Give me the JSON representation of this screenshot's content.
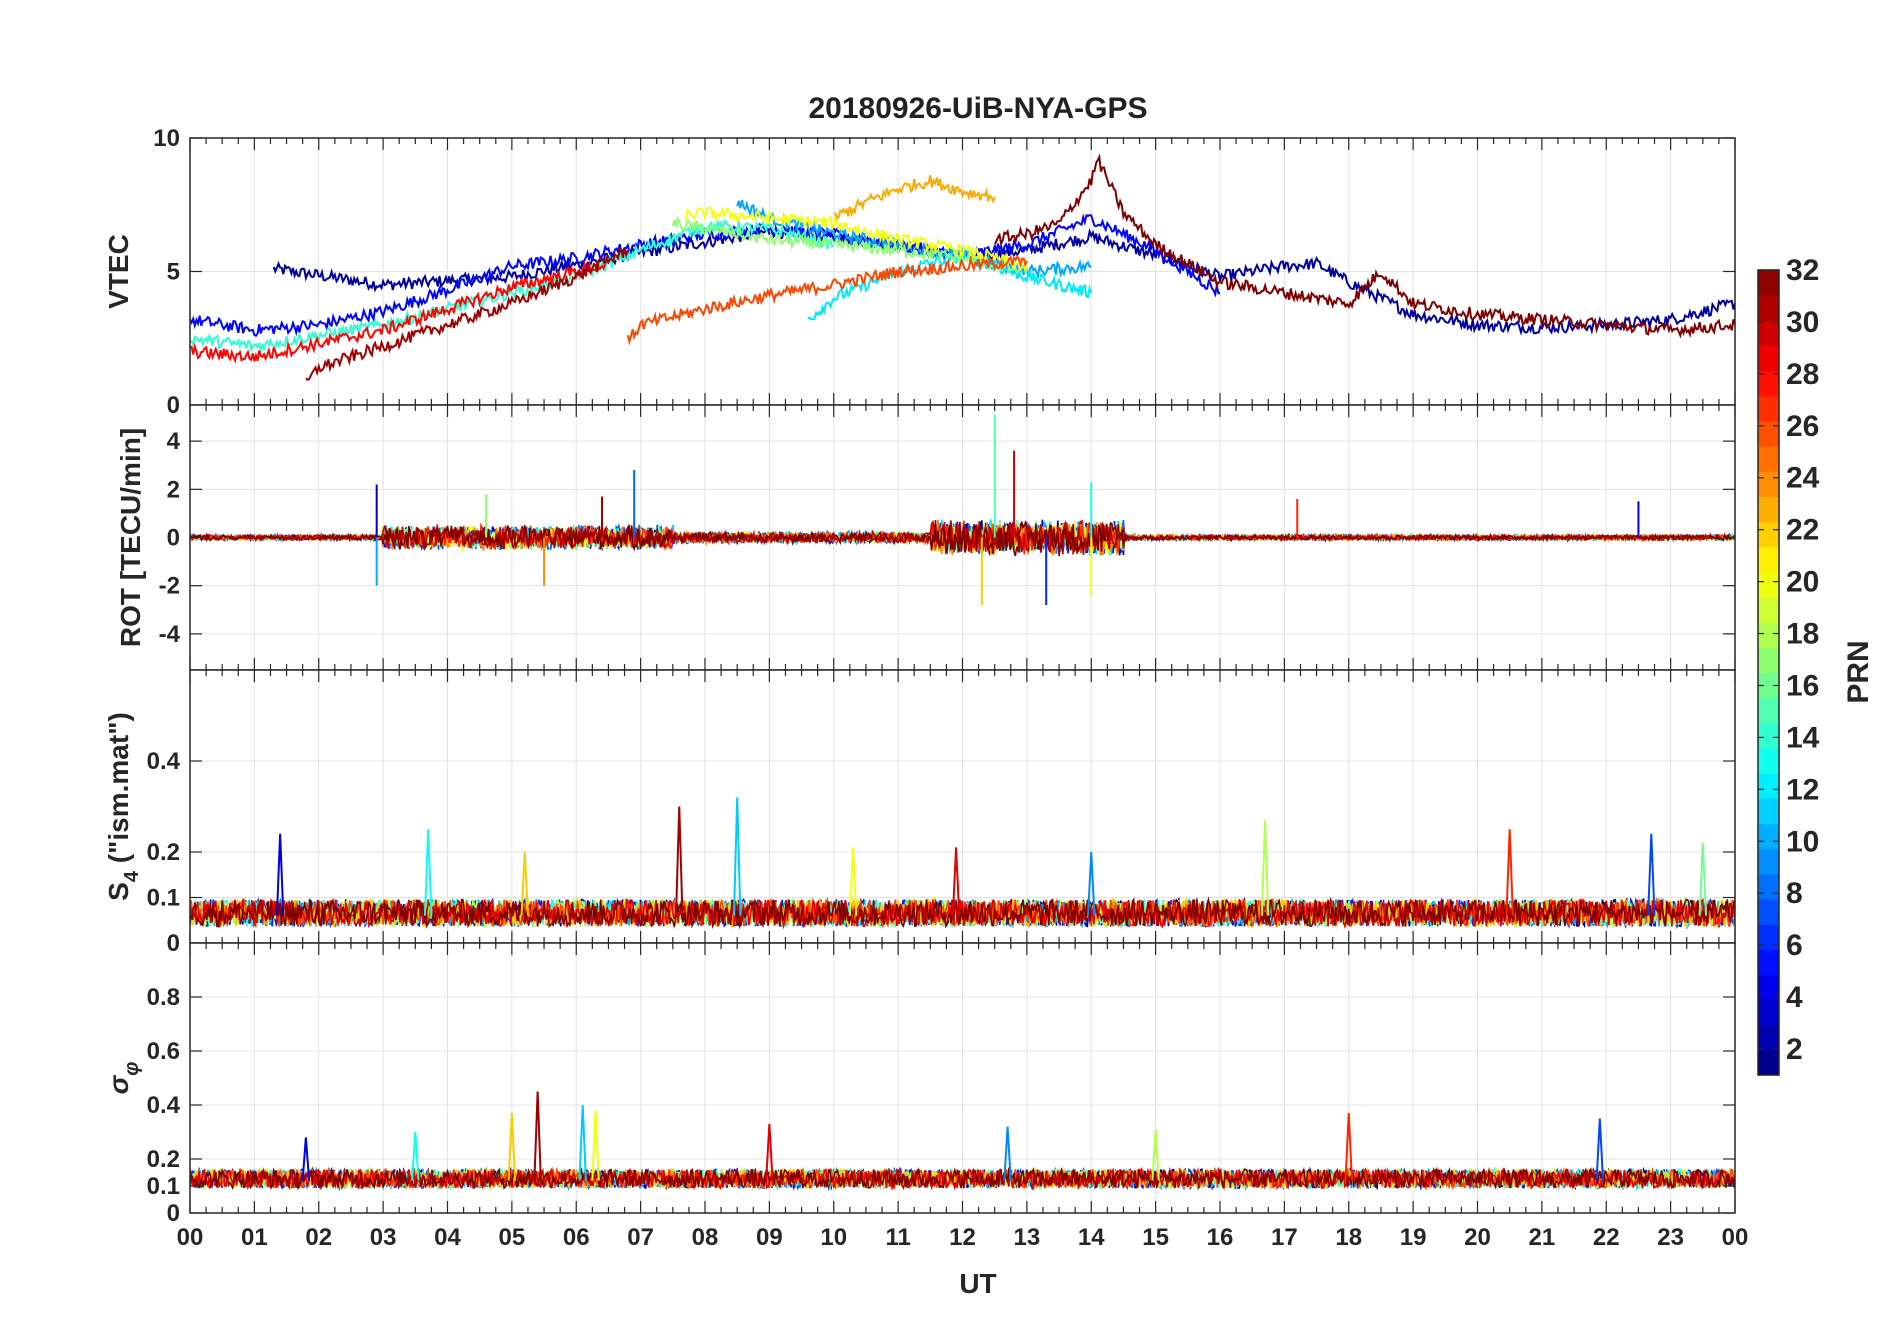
{
  "figure": {
    "title": "20180926-UiB-NYA-GPS",
    "xlabel": "UT",
    "x_ticks": [
      "00",
      "01",
      "02",
      "03",
      "04",
      "05",
      "06",
      "07",
      "08",
      "09",
      "10",
      "11",
      "12",
      "13",
      "14",
      "15",
      "16",
      "17",
      "18",
      "19",
      "20",
      "21",
      "22",
      "23",
      "00"
    ]
  },
  "colorbar": {
    "label": "PRN",
    "ticks": [
      "2",
      "4",
      "6",
      "8",
      "10",
      "12",
      "14",
      "16",
      "18",
      "20",
      "22",
      "24",
      "26",
      "28",
      "30",
      "32"
    ],
    "colormap": "jet",
    "range": [
      1,
      32
    ]
  },
  "chart_data": [
    {
      "type": "line",
      "panel": "vtec",
      "ylabel": "VTEC",
      "ylim": [
        0,
        10
      ],
      "y_ticks": [
        "0",
        "5",
        "10"
      ],
      "xlim": [
        0,
        24
      ],
      "grid": true,
      "series_note": "GPS PRN 1-32, colour by PRN",
      "series": [
        {
          "prn": 2,
          "x": [
            1.3,
            3,
            5,
            7,
            9,
            11,
            12,
            13,
            14,
            15,
            16,
            17,
            17.5,
            18,
            19,
            20,
            21,
            22,
            23,
            24
          ],
          "y": [
            5.1,
            4.5,
            4.8,
            5.7,
            6.5,
            6.0,
            5.5,
            5.8,
            6.3,
            5.6,
            4.8,
            5.2,
            5.3,
            4.6,
            3.4,
            3.0,
            2.9,
            3.0,
            3.2,
            3.8
          ]
        },
        {
          "prn": 5,
          "x": [
            0,
            1,
            2,
            3,
            4,
            5,
            6,
            7,
            8,
            9,
            10,
            11,
            12,
            13,
            14,
            15,
            16
          ],
          "y": [
            3.2,
            2.8,
            3.0,
            3.5,
            4.3,
            5.2,
            5.5,
            6.0,
            6.4,
            6.6,
            6.4,
            6.0,
            5.6,
            6.0,
            7.0,
            5.8,
            4.2
          ]
        },
        {
          "prn": 10,
          "x": [
            8.5,
            9,
            10,
            11,
            12,
            13,
            14
          ],
          "y": [
            7.6,
            7.0,
            6.4,
            6.0,
            5.6,
            5.0,
            5.2
          ]
        },
        {
          "prn": 12,
          "x": [
            9.6,
            10,
            11,
            12,
            13,
            14
          ],
          "y": [
            3.2,
            4.0,
            5.0,
            5.6,
            4.8,
            4.2
          ]
        },
        {
          "prn": 14,
          "x": [
            0,
            1,
            2,
            3,
            4,
            5,
            6,
            7,
            8,
            9,
            10
          ],
          "y": [
            2.5,
            2.2,
            2.6,
            3.0,
            3.6,
            4.2,
            4.8,
            5.8,
            6.7,
            6.6,
            6.0
          ]
        },
        {
          "prn": 17,
          "x": [
            7.5,
            8,
            9,
            10,
            11,
            12,
            13
          ],
          "y": [
            6.8,
            6.6,
            6.2,
            6.0,
            5.8,
            5.5,
            5.0
          ]
        },
        {
          "prn": 20,
          "x": [
            7.7,
            8,
            9,
            10,
            11,
            12,
            13
          ],
          "y": [
            7.1,
            7.2,
            7.0,
            6.8,
            6.2,
            5.8,
            5.2
          ]
        },
        {
          "prn": 23,
          "x": [
            10,
            10.5,
            11,
            11.5,
            12,
            12.5
          ],
          "y": [
            7.0,
            7.6,
            8.1,
            8.4,
            8.0,
            7.8
          ]
        },
        {
          "prn": 26,
          "x": [
            6.8,
            7,
            8,
            9,
            10,
            11,
            12,
            13
          ],
          "y": [
            2.4,
            3.0,
            3.6,
            4.1,
            4.5,
            5.0,
            5.2,
            5.4
          ]
        },
        {
          "prn": 28,
          "x": [
            0,
            1,
            2,
            3,
            4,
            5,
            6,
            6.5
          ],
          "y": [
            2.0,
            1.8,
            2.3,
            2.8,
            3.6,
            4.4,
            5.0,
            5.3
          ]
        },
        {
          "prn": 31,
          "x": [
            1.8,
            2,
            3,
            4,
            5,
            6,
            6.8
          ],
          "y": [
            0.8,
            1.4,
            2.2,
            3.0,
            3.8,
            4.8,
            5.8
          ]
        },
        {
          "prn": 32,
          "x": [
            12.5,
            13,
            13.5,
            14,
            14.1,
            14.5,
            15,
            16,
            17,
            18,
            18.5,
            19,
            20,
            21,
            22,
            23,
            24
          ],
          "y": [
            6.2,
            6.4,
            6.8,
            8.4,
            9.2,
            7.2,
            6.0,
            4.6,
            4.2,
            3.8,
            5.0,
            3.8,
            3.4,
            3.2,
            3.0,
            2.8,
            3.0
          ]
        }
      ]
    },
    {
      "type": "line",
      "panel": "rot",
      "ylabel": "ROT [TECU/min]",
      "ylim": [
        -5.5,
        5.5
      ],
      "y_ticks": [
        "4",
        "2",
        "0",
        "-2",
        "-4"
      ],
      "xlim": [
        0,
        24
      ],
      "grid": true,
      "series_note": "noisy ROT traces around 0; largest spikes near 12.5 UT",
      "spikes": [
        {
          "x": 2.9,
          "y": 2.2
        },
        {
          "x": 2.9,
          "y": -2.0
        },
        {
          "x": 4.6,
          "y": 1.8
        },
        {
          "x": 5.5,
          "y": -2.0
        },
        {
          "x": 6.4,
          "y": 1.7
        },
        {
          "x": 6.9,
          "y": 2.8
        },
        {
          "x": 12.5,
          "y": 5.1
        },
        {
          "x": 12.3,
          "y": -2.8
        },
        {
          "x": 12.8,
          "y": 3.6
        },
        {
          "x": 13.3,
          "y": -2.8
        },
        {
          "x": 14.0,
          "y": 2.3
        },
        {
          "x": 14.0,
          "y": -2.4
        },
        {
          "x": 17.2,
          "y": 1.6
        },
        {
          "x": 22.5,
          "y": 1.5
        }
      ]
    },
    {
      "type": "line",
      "panel": "s4",
      "ylabel": "S4 (\"ism.mat\")",
      "ylabel_main": "S",
      "ylabel_sub": "4",
      "ylabel_rest": " (\"ism.mat\")",
      "ylim": [
        0,
        0.6
      ],
      "y_ticks": [
        "0.4",
        "0.2",
        "0.1",
        "0"
      ],
      "xlim": [
        0,
        24
      ],
      "grid": true,
      "baseline": 0.06,
      "spikes": [
        {
          "x": 1.4,
          "y": 0.24
        },
        {
          "x": 3.7,
          "y": 0.25
        },
        {
          "x": 5.2,
          "y": 0.2
        },
        {
          "x": 7.6,
          "y": 0.3
        },
        {
          "x": 8.5,
          "y": 0.32
        },
        {
          "x": 10.3,
          "y": 0.21
        },
        {
          "x": 11.9,
          "y": 0.21
        },
        {
          "x": 14.0,
          "y": 0.2
        },
        {
          "x": 16.7,
          "y": 0.27
        },
        {
          "x": 20.5,
          "y": 0.25
        },
        {
          "x": 22.7,
          "y": 0.24
        },
        {
          "x": 23.5,
          "y": 0.22
        }
      ]
    },
    {
      "type": "line",
      "panel": "sigma_phi",
      "ylabel": "σ φ",
      "ylabel_main": "σ",
      "ylabel_sub": "φ",
      "ylim": [
        0,
        1
      ],
      "y_ticks": [
        "0.8",
        "0.6",
        "0.4",
        "0.2",
        "0.1",
        "0"
      ],
      "xlim": [
        0,
        24
      ],
      "grid": true,
      "baseline": 0.12,
      "spikes": [
        {
          "x": 1.8,
          "y": 0.28
        },
        {
          "x": 3.5,
          "y": 0.3
        },
        {
          "x": 5.0,
          "y": 0.37
        },
        {
          "x": 5.4,
          "y": 0.45
        },
        {
          "x": 6.1,
          "y": 0.4
        },
        {
          "x": 6.3,
          "y": 0.38
        },
        {
          "x": 9.0,
          "y": 0.33
        },
        {
          "x": 12.7,
          "y": 0.32
        },
        {
          "x": 15.0,
          "y": 0.31
        },
        {
          "x": 18.0,
          "y": 0.37
        },
        {
          "x": 21.9,
          "y": 0.35
        }
      ]
    }
  ]
}
